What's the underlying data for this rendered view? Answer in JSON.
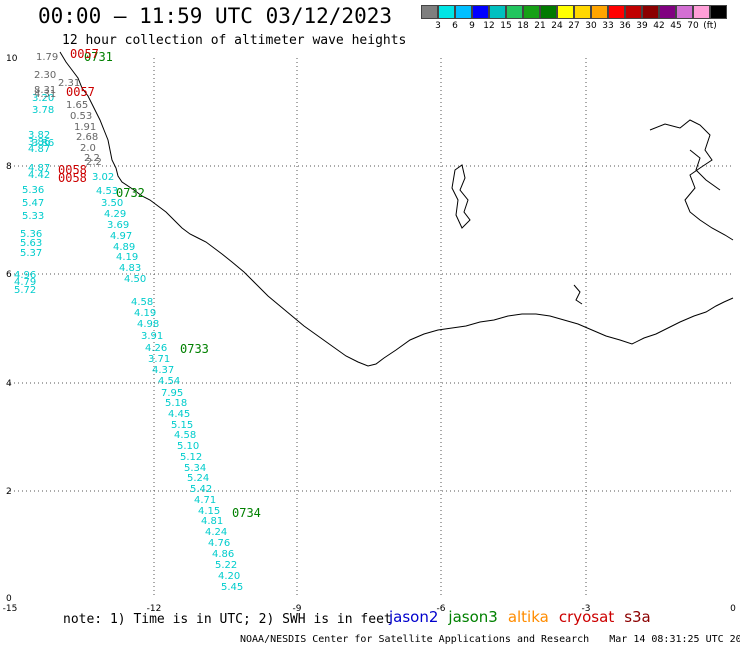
{
  "title": "00:00 – 11:59 UTC 03/12/2023",
  "subtitle": "12 hour collection of altimeter wave heights",
  "scale": {
    "colors": [
      "#7f7f7f",
      "#00e5e5",
      "#00bfff",
      "#0000ff",
      "#00c0c0",
      "#22c55e",
      "#16a016",
      "#007a00",
      "#ffff00",
      "#ffd700",
      "#ffa500",
      "#ff0000",
      "#c00000",
      "#8b0000",
      "#800080",
      "#d36fd3",
      "#ff9fd8",
      "#000000"
    ],
    "labels": [
      "3",
      "6",
      "9",
      "12",
      "15",
      "18",
      "21",
      "24",
      "27",
      "30",
      "33",
      "36",
      "39",
      "42",
      "45",
      "70",
      "(ft)"
    ]
  },
  "map": {
    "x_ticks": [
      "-15",
      "-12",
      "-9",
      "-6",
      "-3",
      "0"
    ],
    "y_ticks": [
      "10",
      "8",
      "6",
      "4",
      "2",
      "0"
    ],
    "colors": {
      "jason2": "#0000cc",
      "jason3": "#008000",
      "altika": "#ff8c00",
      "cryosat": "#cc0000",
      "s3a": "#8b0000",
      "swh": "#00cccc",
      "gray": "#666666"
    }
  },
  "swh_cyan": [
    "3.02",
    "5.36",
    "5.47",
    "5.33",
    "5.36",
    "5.63",
    "5.37",
    "4.96",
    "4.79",
    "5.72",
    "3.82",
    "3.86",
    "4.87",
    "4.87",
    "4.42",
    "4.53",
    "3.50",
    "4.29",
    "3.69",
    "4.97",
    "4.89",
    "4.19",
    "4.83",
    "4.50",
    "4.58",
    "4.19",
    "4.98",
    "3.91",
    "4.26",
    "3.71",
    "4.37",
    "4.54",
    "7.95",
    "5.18",
    "4.45",
    "5.15",
    "4.58",
    "5.10",
    "5.12",
    "5.34",
    "5.24",
    "5.42",
    "4.71",
    "4.15",
    "4.81",
    "4.24",
    "4.76",
    "4.86",
    "5.22",
    "4.20",
    "5.45",
    "3.20",
    "3.78",
    "3.86"
  ],
  "swh_gray": [
    "1.79",
    "2.30",
    "2.31",
    "8.31",
    "4.31",
    "1.65",
    "0.53",
    "1.91",
    "2.68",
    "2.0",
    "2.2",
    "2.2"
  ],
  "times_green": [
    "0731",
    "0732",
    "0733",
    "0734"
  ],
  "times_red": [
    "0057",
    "0057",
    "0058",
    "0058"
  ],
  "note": "note: 1) Time is in UTC; 2) SWH is in feet",
  "satellites": [
    {
      "name": "jason2",
      "color": "#0000cc"
    },
    {
      "name": "jason3",
      "color": "#008000"
    },
    {
      "name": "altika",
      "color": "#ff8c00"
    },
    {
      "name": "cryosat",
      "color": "#cc0000"
    },
    {
      "name": "s3a",
      "color": "#8b0000"
    }
  ],
  "footer": {
    "source": "NOAA/NESDIS Center for Satellite Applications and Research",
    "timestamp": "Mar 14 08:31:25 UTC 2023"
  }
}
